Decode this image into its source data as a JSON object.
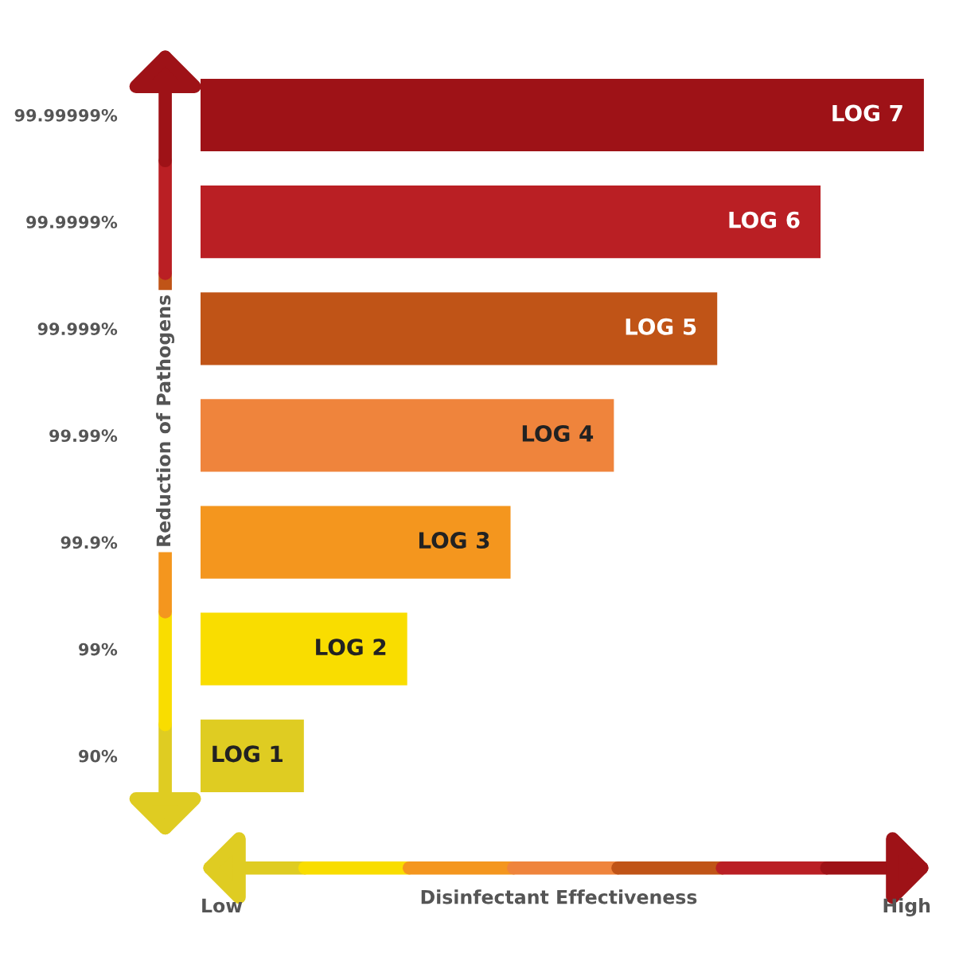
{
  "chart_data": {
    "type": "bar",
    "orientation": "horizontal",
    "tick_labels": "y",
    "categories": [
      "99.99999%",
      "99.9999%",
      "99.999%",
      "99.99%",
      "99.9%",
      "99%",
      "90%"
    ],
    "values": [
      7,
      6,
      5,
      4,
      3,
      2,
      1
    ],
    "colors": [
      "#9e1217",
      "#ba1f24",
      "#c05417",
      "#ef843c",
      "#f4961e",
      "#f9dd00",
      "#dfcc22"
    ],
    "value_labels": [
      "LOG 7",
      "LOG 6",
      "LOG 5",
      "LOG 4",
      "LOG 3",
      "LOG 2",
      "LOG 1"
    ],
    "ylabel": "Reduction of Pathogens",
    "xlabel": "Disinfectant Effectiveness",
    "annotations": [
      "Low",
      "High"
    ],
    "grid": false,
    "legend": false
  }
}
